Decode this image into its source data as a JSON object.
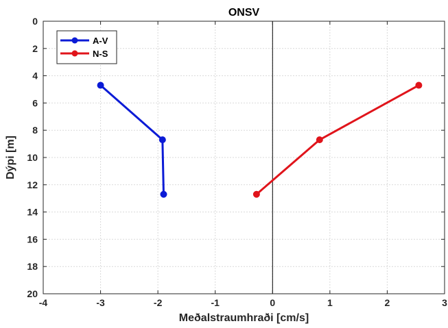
{
  "chart_data": {
    "type": "line",
    "title": "ONSV",
    "xlabel": "Meðalstraumhraði [cm/s]",
    "ylabel": "Dýpi [m]",
    "xlim": [
      -4,
      3
    ],
    "ylim": [
      0,
      20
    ],
    "y_reversed": true,
    "x_ticks": [
      "-4",
      "-3",
      "-2",
      "-1",
      "0",
      "1",
      "2",
      "3"
    ],
    "y_ticks": [
      "0",
      "2",
      "4",
      "6",
      "8",
      "10",
      "12",
      "14",
      "16",
      "18",
      "20"
    ],
    "grid": true,
    "legend_position": "top-left",
    "zero_line": true,
    "series": [
      {
        "name": "A-V",
        "color": "#0b1bd6",
        "points": [
          {
            "x": -3.0,
            "y": 4.7
          },
          {
            "x": -1.92,
            "y": 8.7
          },
          {
            "x": -1.9,
            "y": 12.7
          }
        ]
      },
      {
        "name": "N-S",
        "color": "#e0141b",
        "points": [
          {
            "x": 2.55,
            "y": 4.7
          },
          {
            "x": 0.82,
            "y": 8.7
          },
          {
            "x": -0.28,
            "y": 12.7
          }
        ]
      }
    ]
  }
}
